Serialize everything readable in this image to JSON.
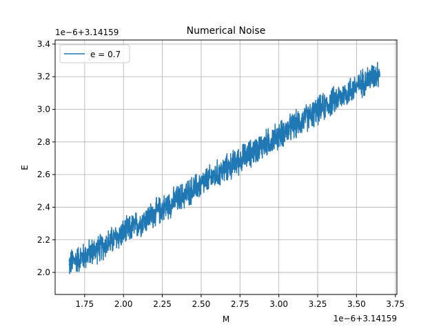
{
  "chart_data": {
    "type": "line",
    "title": "Numerical Noise",
    "xlabel": "M",
    "ylabel": "E",
    "x_offset_text": "1e−6+3.14159",
    "y_offset_text": "1e−6+3.14159",
    "xlim": [
      1.56,
      3.76
    ],
    "ylim": [
      1.865,
      3.425
    ],
    "xticks": [
      1.75,
      2.0,
      2.25,
      2.5,
      2.75,
      3.0,
      3.25,
      3.5,
      3.75
    ],
    "xtick_labels": [
      "1.75",
      "2.00",
      "2.25",
      "2.50",
      "2.75",
      "3.00",
      "3.25",
      "3.50",
      "3.75"
    ],
    "yticks": [
      2.0,
      2.2,
      2.4,
      2.6,
      2.8,
      3.0,
      3.2,
      3.4
    ],
    "ytick_labels": [
      "2.0",
      "2.2",
      "2.4",
      "2.6",
      "2.8",
      "3.0",
      "3.2",
      "3.4"
    ],
    "grid": true,
    "legend_position": "top-left",
    "series": [
      {
        "name": "e = 0.7",
        "color": "#1f77b4",
        "description_trend": "noisy linear increase",
        "x": [
          1.65,
          1.7,
          1.75,
          1.8,
          1.85,
          1.9,
          1.95,
          2.0,
          2.05,
          2.1,
          2.15,
          2.2,
          2.25,
          2.3,
          2.35,
          2.4,
          2.45,
          2.5,
          2.55,
          2.6,
          2.65,
          2.7,
          2.75,
          2.8,
          2.85,
          2.9,
          2.95,
          3.0,
          3.05,
          3.1,
          3.15,
          3.2,
          3.25,
          3.3,
          3.35,
          3.4,
          3.45,
          3.5,
          3.55,
          3.6,
          3.65
        ],
        "y": [
          2.05,
          2.08,
          2.1,
          2.13,
          2.15,
          2.18,
          2.21,
          2.24,
          2.27,
          2.3,
          2.33,
          2.36,
          2.39,
          2.42,
          2.45,
          2.48,
          2.51,
          2.54,
          2.57,
          2.6,
          2.63,
          2.66,
          2.69,
          2.72,
          2.75,
          2.78,
          2.81,
          2.84,
          2.87,
          2.9,
          2.93,
          2.96,
          2.99,
          3.02,
          3.05,
          3.08,
          3.11,
          3.14,
          3.17,
          3.2,
          3.23
        ],
        "noise_band": 0.1
      }
    ]
  }
}
